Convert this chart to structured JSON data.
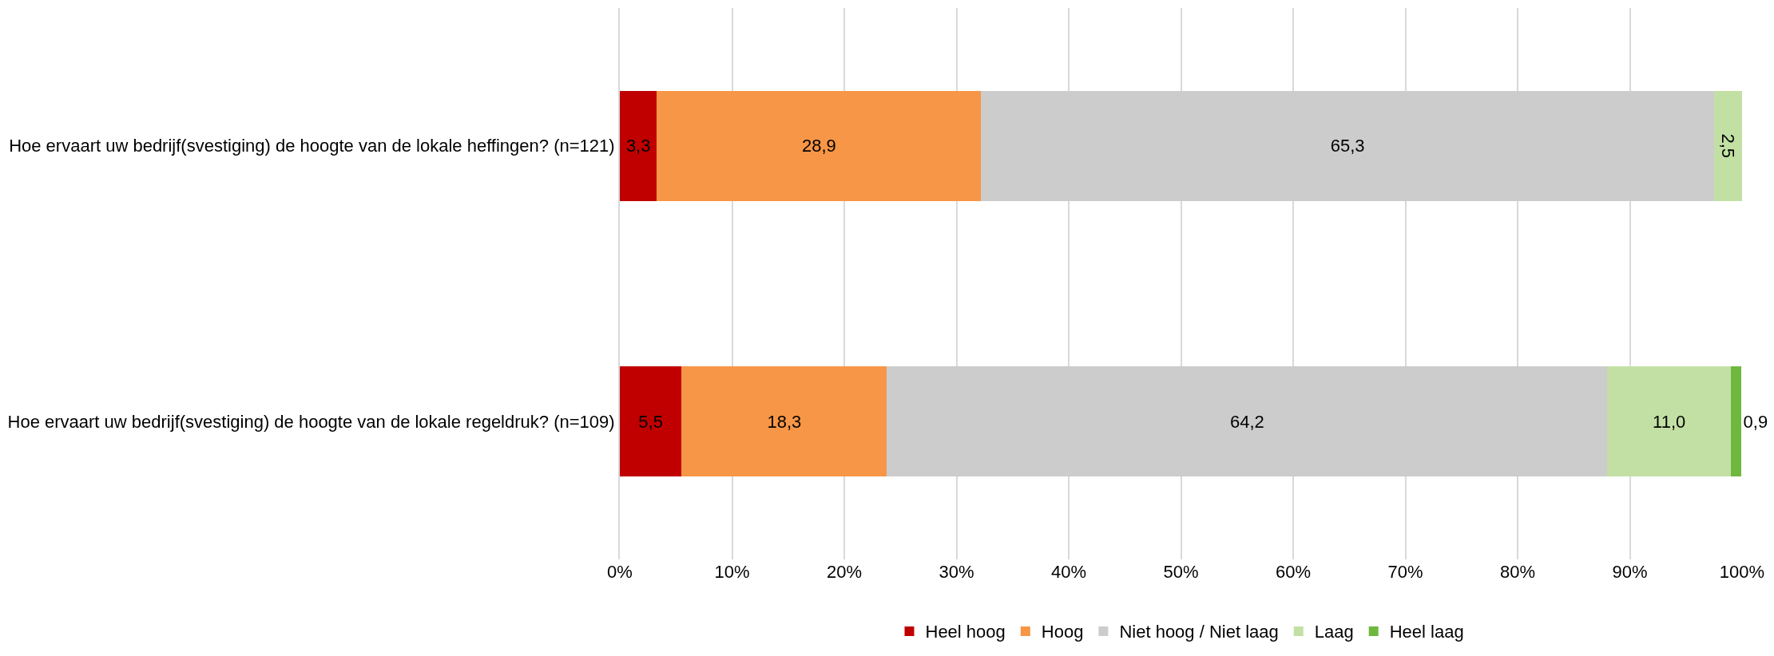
{
  "chart_data": {
    "type": "bar",
    "orientation": "horizontal",
    "stacked": true,
    "categories": [
      "Hoe ervaart uw bedrijf(svestiging) de hoogte van de lokale heffingen? (n=121)",
      "Hoe ervaart uw bedrijf(svestiging) de hoogte van de lokale regeldruk? (n=109)"
    ],
    "series": [
      {
        "name": "Heel hoog",
        "color": "#c00000",
        "values": [
          3.3,
          5.5
        ],
        "value_labels": [
          "3,3",
          "5,5"
        ]
      },
      {
        "name": "Hoog",
        "color": "#f79646",
        "values": [
          28.9,
          18.3
        ],
        "value_labels": [
          "28,9",
          "18,3"
        ]
      },
      {
        "name": "Niet hoog / Niet laag",
        "color": "#cccccc",
        "values": [
          65.3,
          64.2
        ],
        "value_labels": [
          "65,3",
          "64,2"
        ]
      },
      {
        "name": "Laag",
        "color": "#c2e0a4",
        "values": [
          2.5,
          11.0
        ],
        "value_labels": [
          "2,5",
          "11,0"
        ]
      },
      {
        "name": "Heel laag",
        "color": "#6fb83f",
        "values": [
          null,
          0.9
        ],
        "value_labels": [
          null,
          "0,9"
        ]
      }
    ],
    "xlim": [
      0,
      100
    ],
    "xticks": [
      {
        "value": 0,
        "label": "0%"
      },
      {
        "value": 10,
        "label": "10%"
      },
      {
        "value": 20,
        "label": "20%"
      },
      {
        "value": 30,
        "label": "30%"
      },
      {
        "value": 40,
        "label": "40%"
      },
      {
        "value": 50,
        "label": "50%"
      },
      {
        "value": 60,
        "label": "60%"
      },
      {
        "value": 70,
        "label": "70%"
      },
      {
        "value": 80,
        "label": "80%"
      },
      {
        "value": 90,
        "label": "90%"
      },
      {
        "value": 100,
        "label": "100%"
      }
    ],
    "grid": "x",
    "legend": "bottom"
  }
}
